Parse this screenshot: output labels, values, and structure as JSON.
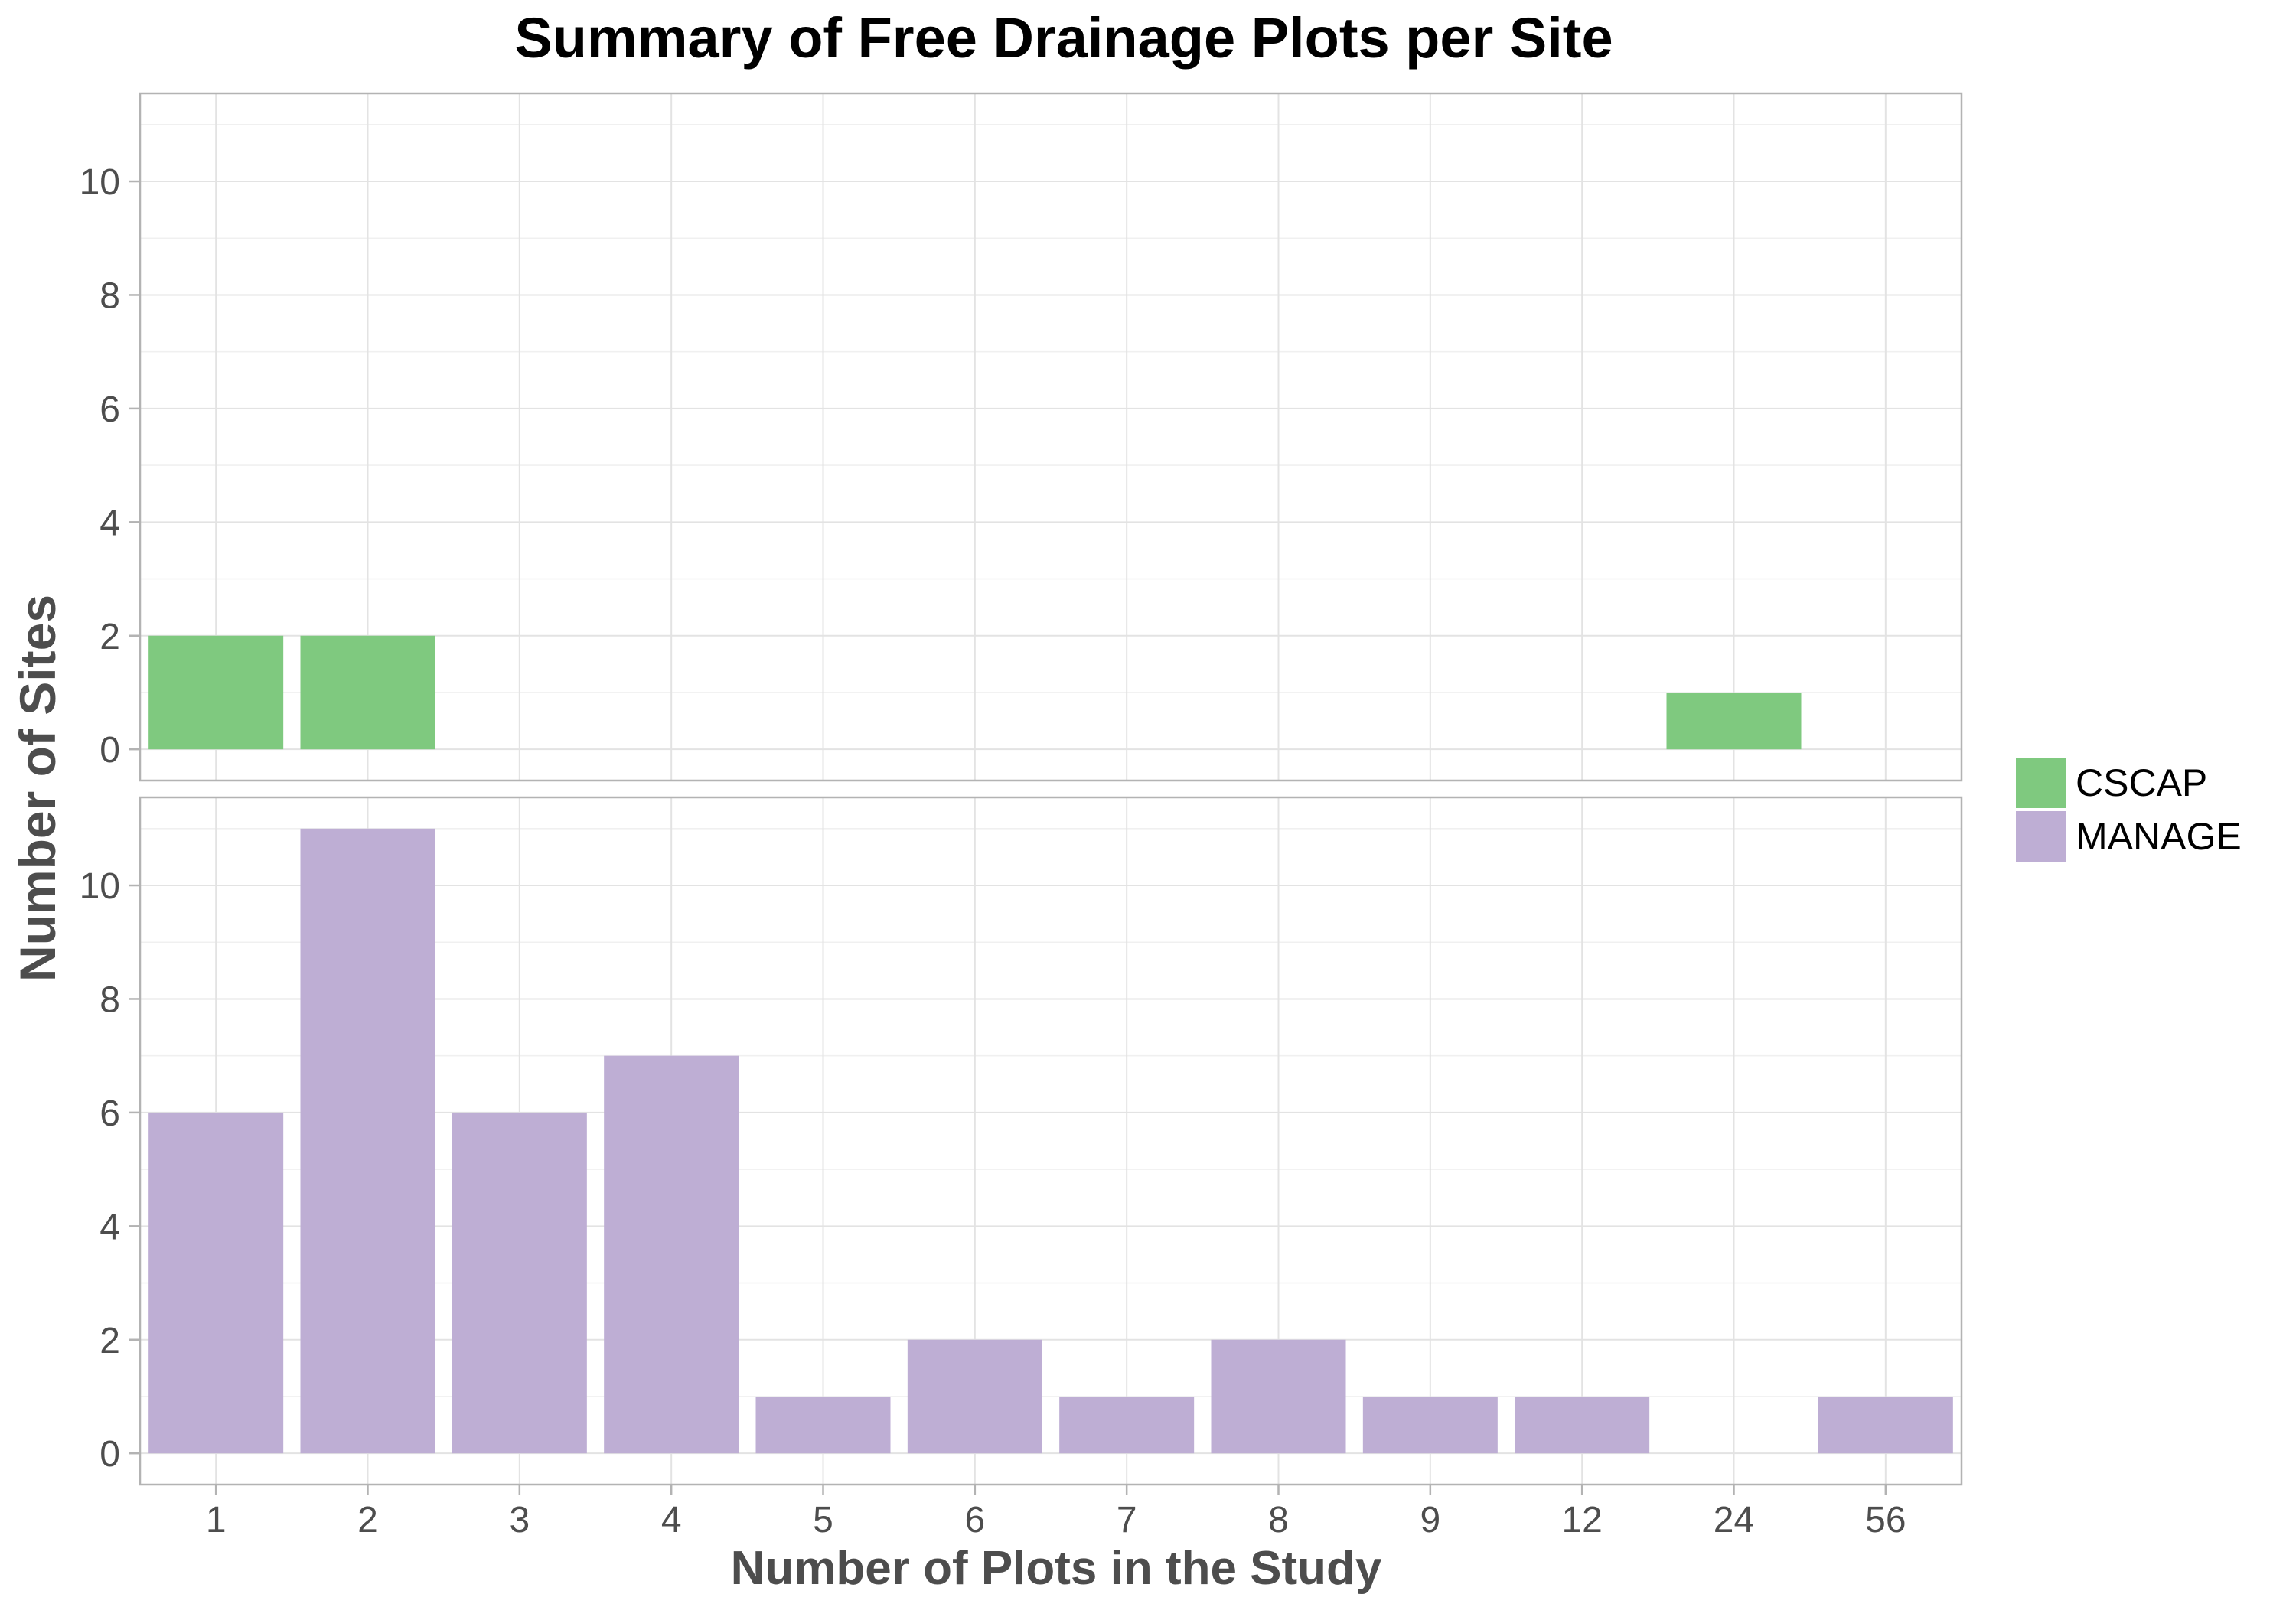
{
  "chart_data": {
    "type": "bar",
    "title": "Summary of Free Drainage Plots per Site",
    "xlabel": "Number of Plots in the Study",
    "ylabel": "Number of Sites",
    "categories": [
      "1",
      "2",
      "3",
      "4",
      "5",
      "6",
      "7",
      "8",
      "9",
      "12",
      "24",
      "56"
    ],
    "ylim": [
      0,
      11
    ],
    "yticks": [
      "0",
      "2",
      "4",
      "6",
      "8",
      "10"
    ],
    "grid": true,
    "legend_position": "right",
    "facets": [
      {
        "name": "CSCAP",
        "color": "#7fc97f",
        "values": [
          2,
          2,
          0,
          0,
          0,
          0,
          0,
          0,
          0,
          0,
          1,
          0
        ]
      },
      {
        "name": "MANAGE",
        "color": "#beaed4",
        "values": [
          6,
          11,
          6,
          7,
          1,
          2,
          1,
          2,
          1,
          1,
          0,
          1
        ]
      }
    ]
  }
}
